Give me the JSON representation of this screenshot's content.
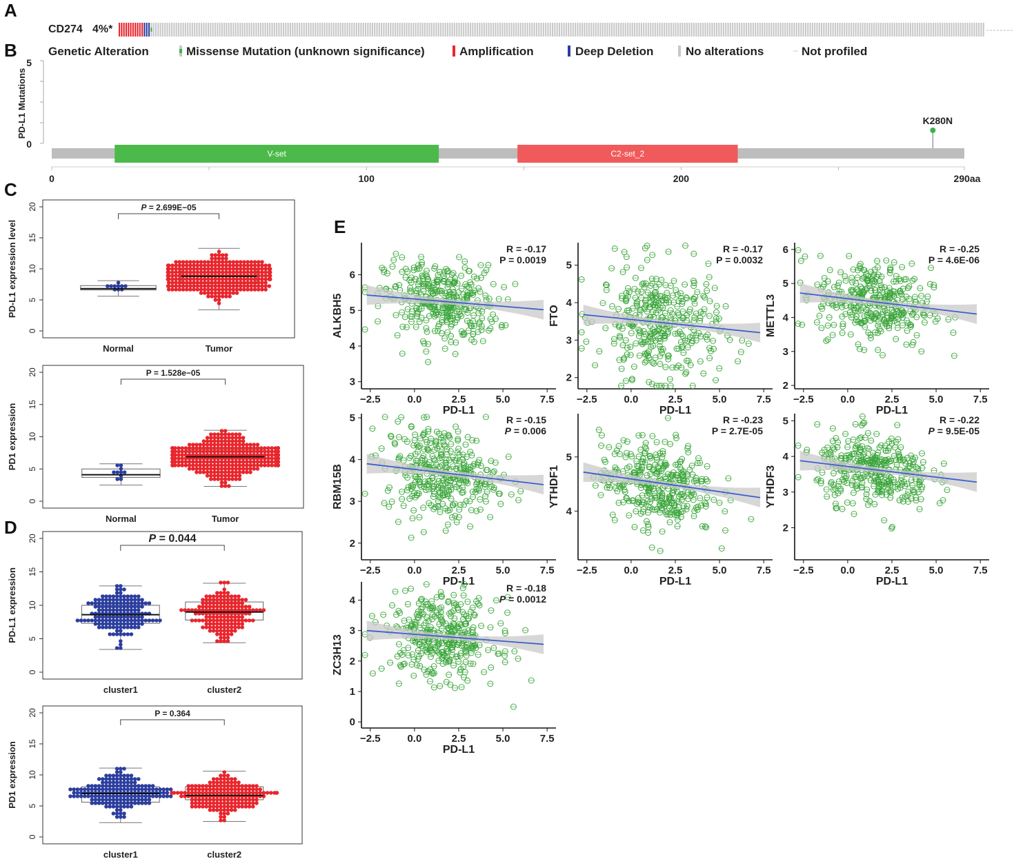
{
  "colors": {
    "red": "#e8262d",
    "blue": "#2c3e9e",
    "green": "#3cb34a",
    "grey_bar": "#bdbdbd",
    "oncoprint_none": "#c8c8c8",
    "vset": "#4cba4a",
    "c2set": "#f05a5a",
    "scatter_green": "#3aa53a",
    "reg_blue": "#3b5fcc",
    "ci_grey": "#c9c9c9"
  },
  "panels": {
    "A": "A",
    "B": "B",
    "C": "C",
    "D": "D",
    "E": "E"
  },
  "oncoprint": {
    "gene": "CD274",
    "percent": "4%*",
    "legend_title": "Genetic Alteration",
    "legend": [
      {
        "label": "Missense Mutation (unknown significance)",
        "color": "#7cc47a",
        "icon": "missense-swatch"
      },
      {
        "label": "Amplification",
        "color": "#e8262d",
        "icon": "amplification-swatch"
      },
      {
        "label": "Deep Deletion",
        "color": "#2c3e9e",
        "icon": "deep-deletion-swatch"
      },
      {
        "label": "No alterations",
        "color": "#c8c8c8",
        "icon": "no-alteration-swatch"
      },
      {
        "label": "Not profiled",
        "color": "#c8c8c8",
        "icon": "not-profiled-swatch"
      }
    ]
  },
  "chart_data": [
    {
      "id": "B",
      "type": "lollipop",
      "ylabel": "PD-L1 Mutations",
      "yticks": [
        "5",
        "0"
      ],
      "ylim": [
        0,
        5
      ],
      "xticks": [
        "0",
        "100",
        "200",
        "290aa"
      ],
      "xlim": [
        0,
        290
      ],
      "domains": [
        {
          "name": "V-set",
          "start": 20,
          "end": 123
        },
        {
          "name": "C2-set_2",
          "start": 148,
          "end": 218
        }
      ],
      "mutations": [
        {
          "label": "K280N",
          "position": 280,
          "count": 1
        }
      ]
    },
    {
      "id": "C1",
      "type": "boxplot-beeswarm",
      "ylabel": "PD-L1 expression level",
      "ylim": [
        0,
        20
      ],
      "yticks": [
        "20",
        "15",
        "10",
        "5",
        "0"
      ],
      "pvalue": "2.699E−05",
      "p_prefix": "P",
      "p_sep": " = ",
      "p_italic": true,
      "groups": [
        {
          "name": "Normal",
          "color": "#2c3e9e",
          "n": 10,
          "q1": 6.6,
          "median": 6.8,
          "q3": 7.3,
          "min": 5.6,
          "max": 8.1,
          "mean": 6.9,
          "sd": 0.6
        },
        {
          "name": "Tumor",
          "color": "#e8262d",
          "n": 330,
          "q1": 7.6,
          "median": 8.8,
          "q3": 9.9,
          "min": 3.4,
          "max": 13.3,
          "mean": 8.8,
          "sd": 1.7
        }
      ]
    },
    {
      "id": "C2",
      "type": "boxplot-beeswarm",
      "ylabel": "PD1 expression",
      "ylim": [
        0,
        20
      ],
      "yticks": [
        "20",
        "15",
        "10",
        "5",
        "0"
      ],
      "pvalue": "1.528e−05",
      "p_prefix": "P",
      "p_sep": " = ",
      "p_italic": false,
      "groups": [
        {
          "name": "Normal",
          "color": "#2c3e9e",
          "n": 10,
          "q1": 3.7,
          "median": 4.1,
          "q3": 5.0,
          "min": 2.5,
          "max": 5.8,
          "mean": 4.3,
          "sd": 1.2
        },
        {
          "name": "Tumor",
          "color": "#e8262d",
          "n": 380,
          "q1": 5.6,
          "median": 6.9,
          "q3": 8.0,
          "min": 2.3,
          "max": 11.0,
          "mean": 6.9,
          "sd": 1.6
        }
      ]
    },
    {
      "id": "D1",
      "type": "boxplot-beeswarm",
      "ylabel": "PD-L1 expression",
      "ylim": [
        0,
        20
      ],
      "yticks": [
        "20",
        "15",
        "10",
        "5",
        "0"
      ],
      "pvalue": "0.044",
      "p_prefix": "P",
      "p_sep": " = ",
      "p_italic": true,
      "p_large": true,
      "groups": [
        {
          "name": "cluster1",
          "color": "#2c3e9e",
          "n": 170,
          "q1": 7.3,
          "median": 8.6,
          "q3": 10.0,
          "min": 3.4,
          "max": 12.9,
          "mean": 8.6,
          "sd": 1.9
        },
        {
          "name": "cluster2",
          "color": "#e8262d",
          "n": 170,
          "q1": 7.8,
          "median": 9.0,
          "q3": 10.5,
          "min": 4.4,
          "max": 13.3,
          "mean": 9.0,
          "sd": 1.8
        }
      ]
    },
    {
      "id": "D2",
      "type": "boxplot-beeswarm",
      "ylabel": "PD1 expression",
      "ylim": [
        0,
        20
      ],
      "yticks": [
        "20",
        "15",
        "10",
        "5",
        "0"
      ],
      "pvalue": "0.364",
      "p_prefix": "P",
      "p_sep": " = ",
      "p_italic": false,
      "groups": [
        {
          "name": "cluster1",
          "color": "#2c3e9e",
          "n": 190,
          "q1": 5.6,
          "median": 7.0,
          "q3": 8.1,
          "min": 2.3,
          "max": 11.1,
          "mean": 6.9,
          "sd": 1.7
        },
        {
          "name": "cluster2",
          "color": "#e8262d",
          "n": 190,
          "q1": 6.0,
          "median": 6.7,
          "q3": 8.1,
          "min": 2.5,
          "max": 10.6,
          "mean": 6.9,
          "sd": 1.5
        }
      ]
    },
    {
      "id": "E1",
      "type": "scatter",
      "gene": "ALKBH5",
      "xlabel": "PD-L1",
      "R": "R = -0.17",
      "P_label": "P",
      "P_value": " = 0.0019",
      "p_italic": false,
      "xlim": [
        -3,
        8
      ],
      "ylim": [
        2.8,
        6.9
      ],
      "xticks": [
        "-2.5",
        "0.0",
        "2.5",
        "5.0",
        "7.5"
      ],
      "yticks": [
        "3",
        "4",
        "5",
        "6"
      ],
      "fit": [
        [
          -2.7,
          5.43
        ],
        [
          7.3,
          5.02
        ]
      ],
      "cx": 1.5,
      "cy": 5.25,
      "sx": 1.6,
      "sy": 0.55,
      "n": 360
    },
    {
      "id": "E2",
      "type": "scatter",
      "gene": "FTO",
      "xlabel": "PD-L1",
      "R": "R = -0.17",
      "P_label": "P",
      "P_value": " = 0.0032",
      "p_italic": false,
      "xlim": [
        -3,
        8
      ],
      "ylim": [
        1.7,
        5.6
      ],
      "xticks": [
        "-2.5",
        "0.0",
        "2.5",
        "5.0",
        "7.5"
      ],
      "yticks": [
        "2",
        "3",
        "4",
        "5"
      ],
      "fit": [
        [
          -2.7,
          3.68
        ],
        [
          7.3,
          3.2
        ]
      ],
      "cx": 1.6,
      "cy": 3.45,
      "sx": 1.7,
      "sy": 0.75,
      "n": 360
    },
    {
      "id": "E3",
      "type": "scatter",
      "gene": "METTL3",
      "xlabel": "PD-L1",
      "R": "R = -0.25",
      "P_label": "P",
      "P_value": " = 4.6E-06",
      "p_italic": false,
      "xlim": [
        -3,
        8
      ],
      "ylim": [
        1.9,
        6.2
      ],
      "xticks": [
        "-2.5",
        "0.0",
        "2.5",
        "5.0",
        "7.5"
      ],
      "yticks": [
        "2",
        "3",
        "4",
        "5",
        "6"
      ],
      "fit": [
        [
          -2.7,
          4.72
        ],
        [
          7.3,
          4.1
        ]
      ],
      "cx": 1.5,
      "cy": 4.45,
      "sx": 1.6,
      "sy": 0.6,
      "n": 360
    },
    {
      "id": "E4",
      "type": "scatter",
      "gene": "RBM15B",
      "xlabel": "PD-L1",
      "R": "R = -0.15",
      "P_label": "P",
      "P_value": " = 0.006",
      "p_italic": true,
      "xlim": [
        -3,
        8
      ],
      "ylim": [
        1.6,
        5.1
      ],
      "xticks": [
        "-2.5",
        "0.0",
        "2.5",
        "5.0",
        "7.5"
      ],
      "yticks": [
        "2",
        "3",
        "4",
        "5"
      ],
      "fit": [
        [
          -2.7,
          3.9
        ],
        [
          7.3,
          3.4
        ]
      ],
      "cx": 1.5,
      "cy": 3.7,
      "sx": 1.6,
      "sy": 0.55,
      "n": 360
    },
    {
      "id": "E5",
      "type": "scatter",
      "gene": "YTHDF1",
      "xlabel": "PD-L1",
      "R": "R = -0.23",
      "P_label": "P",
      "P_value": " = 2.7E-05",
      "p_italic": false,
      "xlim": [
        -3,
        8
      ],
      "ylim": [
        3.1,
        5.8
      ],
      "xticks": [
        "-2.5",
        "0.0",
        "2.5",
        "5.0",
        "7.5"
      ],
      "yticks": [
        "4",
        "5"
      ],
      "fit": [
        [
          -2.7,
          4.72
        ],
        [
          7.3,
          4.25
        ]
      ],
      "cx": 1.5,
      "cy": 4.5,
      "sx": 1.6,
      "sy": 0.4,
      "n": 360
    },
    {
      "id": "E6",
      "type": "scatter",
      "gene": "YTHDF3",
      "xlabel": "PD-L1",
      "R": "R = -0.22",
      "P_label": "P",
      "P_value": " = 9.5E-05",
      "p_italic": true,
      "xlim": [
        -3,
        8
      ],
      "ylim": [
        1.1,
        5.2
      ],
      "xticks": [
        "-2.5",
        "0.0",
        "2.5",
        "5.0",
        "7.5"
      ],
      "yticks": [
        "2",
        "3",
        "4",
        "5"
      ],
      "fit": [
        [
          -2.7,
          3.88
        ],
        [
          7.3,
          3.28
        ]
      ],
      "cx": 1.5,
      "cy": 3.6,
      "sx": 1.6,
      "sy": 0.5,
      "n": 360
    },
    {
      "id": "E7",
      "type": "scatter",
      "gene": "ZC3H13",
      "xlabel": "PD-L1",
      "R": "R = -0.18",
      "P_label": "P",
      "P_value": " = 0.0012",
      "p_italic": true,
      "xlim": [
        -3,
        8
      ],
      "ylim": [
        -0.2,
        4.6
      ],
      "xticks": [
        "-2.5",
        "0.0",
        "2.5",
        "5.0",
        "7.5"
      ],
      "yticks": [
        "0",
        "1",
        "2",
        "3",
        "4"
      ],
      "fit": [
        [
          -2.7,
          3.0
        ],
        [
          7.3,
          2.55
        ]
      ],
      "cx": 1.5,
      "cy": 2.8,
      "sx": 1.6,
      "sy": 0.7,
      "n": 360
    }
  ]
}
